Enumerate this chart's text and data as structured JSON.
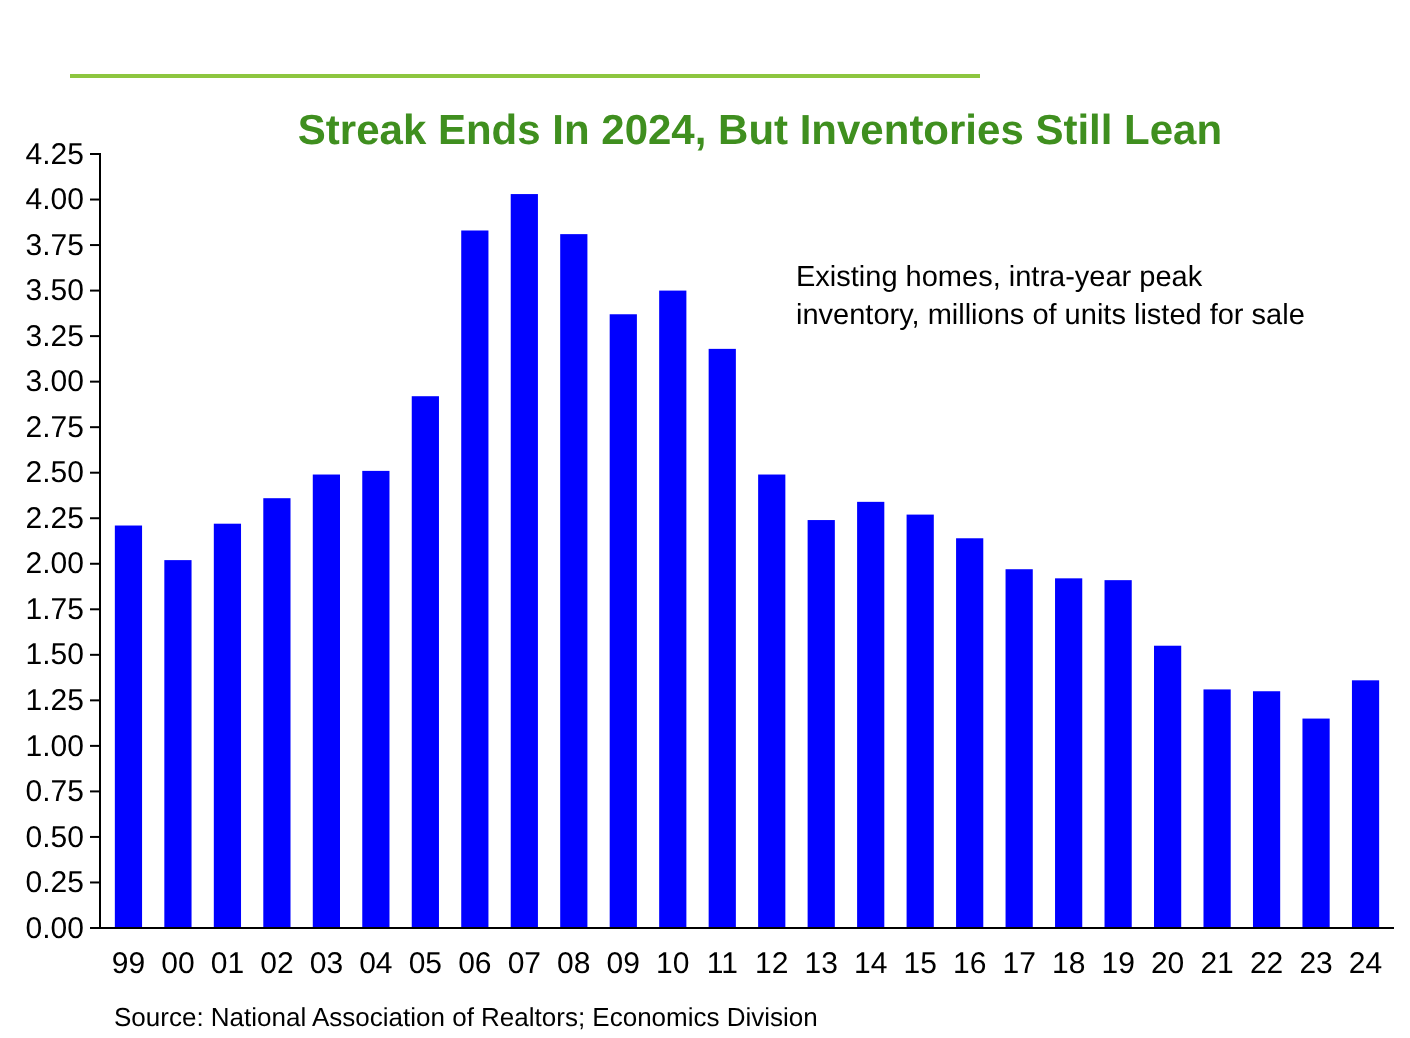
{
  "chart_data": {
    "type": "bar",
    "title": "Streak Ends In 2024, But Inventories Still Lean",
    "categories": [
      "99",
      "00",
      "01",
      "02",
      "03",
      "04",
      "05",
      "06",
      "07",
      "08",
      "09",
      "10",
      "11",
      "12",
      "13",
      "14",
      "15",
      "16",
      "17",
      "18",
      "19",
      "20",
      "21",
      "22",
      "23",
      "24"
    ],
    "values": [
      2.21,
      2.02,
      2.22,
      2.36,
      2.49,
      2.51,
      2.92,
      3.83,
      4.03,
      3.81,
      3.37,
      3.5,
      3.18,
      2.49,
      2.24,
      2.34,
      2.27,
      2.14,
      1.97,
      1.92,
      1.91,
      1.55,
      1.31,
      1.3,
      1.15,
      1.36
    ],
    "color": "#0000ff",
    "ylim": [
      0,
      4.25
    ],
    "yticks": [
      {
        "value": 0,
        "label": "0.00"
      },
      {
        "value": 0.25,
        "label": "0.25"
      },
      {
        "value": 0.5,
        "label": "0.50"
      },
      {
        "value": 0.75,
        "label": "0.75"
      },
      {
        "value": 1,
        "label": "1.00"
      },
      {
        "value": 1.25,
        "label": "1.25"
      },
      {
        "value": 1.5,
        "label": "1.50"
      },
      {
        "value": 1.75,
        "label": "1.75"
      },
      {
        "value": 2,
        "label": "2.00"
      },
      {
        "value": 2.25,
        "label": "2.25"
      },
      {
        "value": 2.5,
        "label": "2.50"
      },
      {
        "value": 2.75,
        "label": "2.75"
      },
      {
        "value": 3,
        "label": "3.00"
      },
      {
        "value": 3.25,
        "label": "3.25"
      },
      {
        "value": 3.5,
        "label": "3.50"
      },
      {
        "value": 3.75,
        "label": "3.75"
      },
      {
        "value": 4,
        "label": "4.00"
      },
      {
        "value": 4.25,
        "label": "4.25"
      }
    ],
    "grid": false,
    "annotations": [
      "Existing homes, intra-year peak\ninventory, millions of units listed for sale",
      "Source: National Association of Realtors; Economics Division"
    ]
  }
}
